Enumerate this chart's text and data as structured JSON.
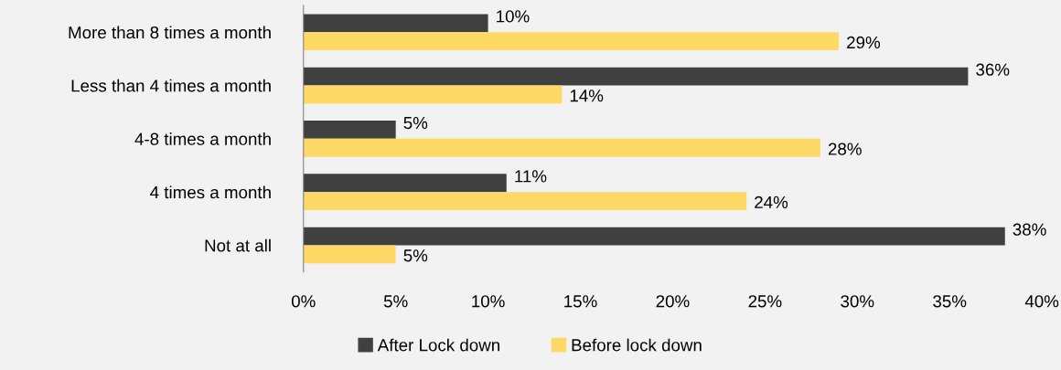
{
  "chart_data": {
    "type": "bar",
    "orientation": "horizontal",
    "categories": [
      "More than 8 times a month",
      "Less than 4 times a month",
      "4-8 times a month",
      "4 times a month",
      "Not at all"
    ],
    "series": [
      {
        "name": "After Lock down",
        "color": "#404040",
        "values": [
          10,
          36,
          5,
          11,
          38
        ],
        "value_labels": [
          "10%",
          "36%",
          "5%",
          "11%",
          "38%"
        ]
      },
      {
        "name": "Before lock down",
        "color": "#ffd966",
        "values": [
          29,
          14,
          28,
          24,
          5
        ],
        "value_labels": [
          "29%",
          "14%",
          "28%",
          "24%",
          "5%"
        ]
      }
    ],
    "xlim": [
      0,
      40
    ],
    "xticks": [
      {
        "value": 0,
        "label": "0%"
      },
      {
        "value": 5,
        "label": "5%"
      },
      {
        "value": 10,
        "label": "10%"
      },
      {
        "value": 15,
        "label": "15%"
      },
      {
        "value": 20,
        "label": "20%"
      },
      {
        "value": 25,
        "label": "25%"
      },
      {
        "value": 30,
        "label": "30%"
      },
      {
        "value": 35,
        "label": "35%"
      },
      {
        "value": 40,
        "label": "40%"
      }
    ],
    "grid": false,
    "legend": "bottom"
  }
}
